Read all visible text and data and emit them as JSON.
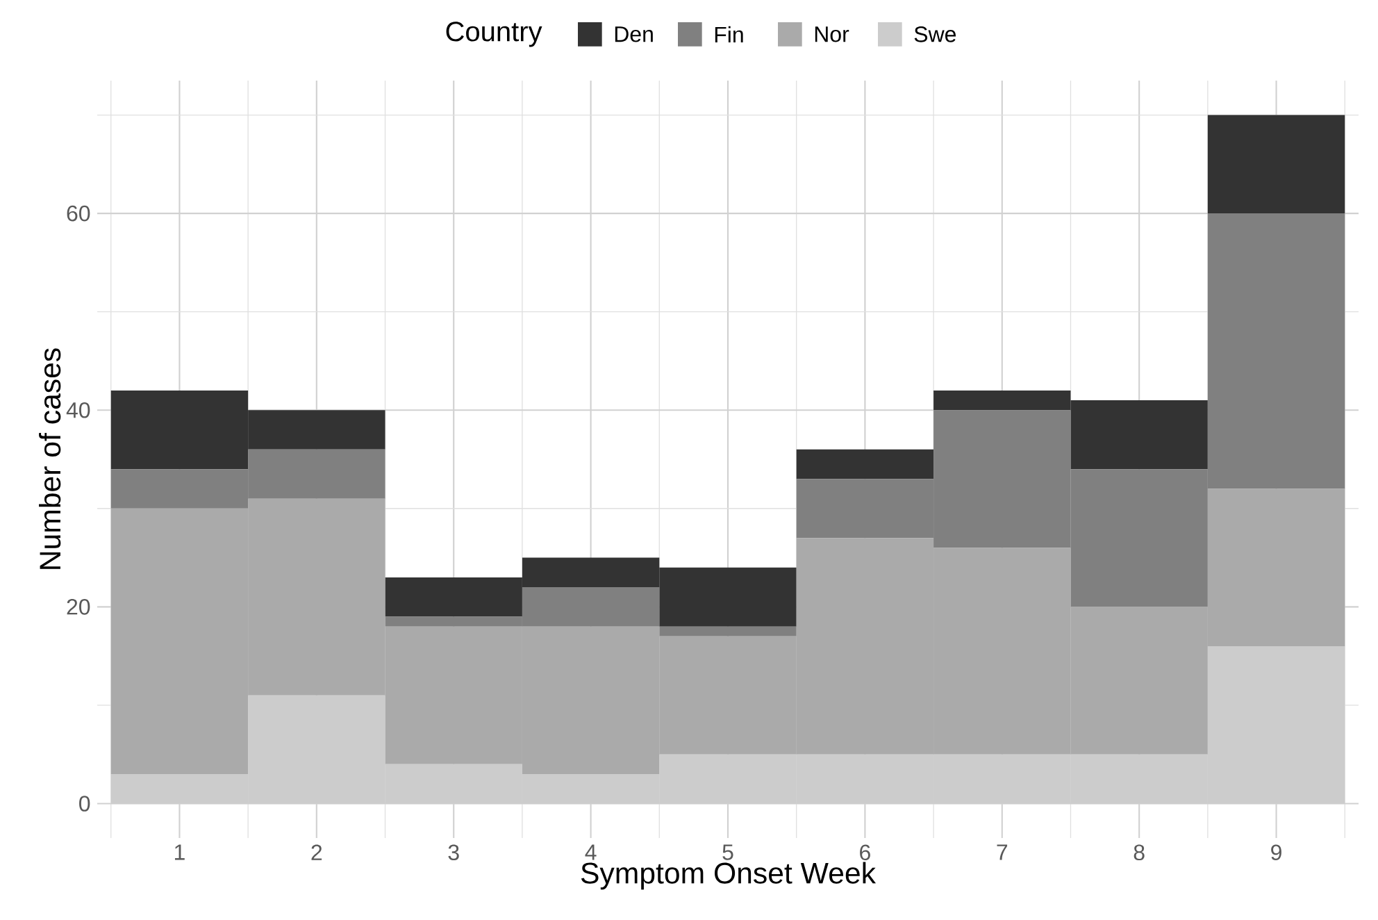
{
  "chart_data": {
    "type": "bar",
    "stacked": true,
    "xlabel": "Symptom Onset Week",
    "ylabel": "Number of cases",
    "legend_title": "Country",
    "legend": "top",
    "grid": true,
    "categories": [
      "1",
      "2",
      "3",
      "4",
      "5",
      "6",
      "7",
      "8",
      "9"
    ],
    "series": [
      {
        "name": "Swe",
        "color": "#cccccc",
        "values": [
          3,
          11,
          4,
          3,
          5,
          5,
          5,
          5,
          16
        ]
      },
      {
        "name": "Nor",
        "color": "#aaaaaa",
        "values": [
          27,
          20,
          14,
          15,
          12,
          22,
          21,
          15,
          16
        ]
      },
      {
        "name": "Fin",
        "color": "#808080",
        "values": [
          4,
          5,
          1,
          4,
          1,
          6,
          14,
          14,
          28
        ]
      },
      {
        "name": "Den",
        "color": "#333333",
        "values": [
          8,
          4,
          4,
          3,
          6,
          3,
          2,
          7,
          10
        ]
      }
    ],
    "ylim": [
      -3.5,
      73.5
    ],
    "yticks": [
      0,
      20,
      40,
      60
    ]
  }
}
